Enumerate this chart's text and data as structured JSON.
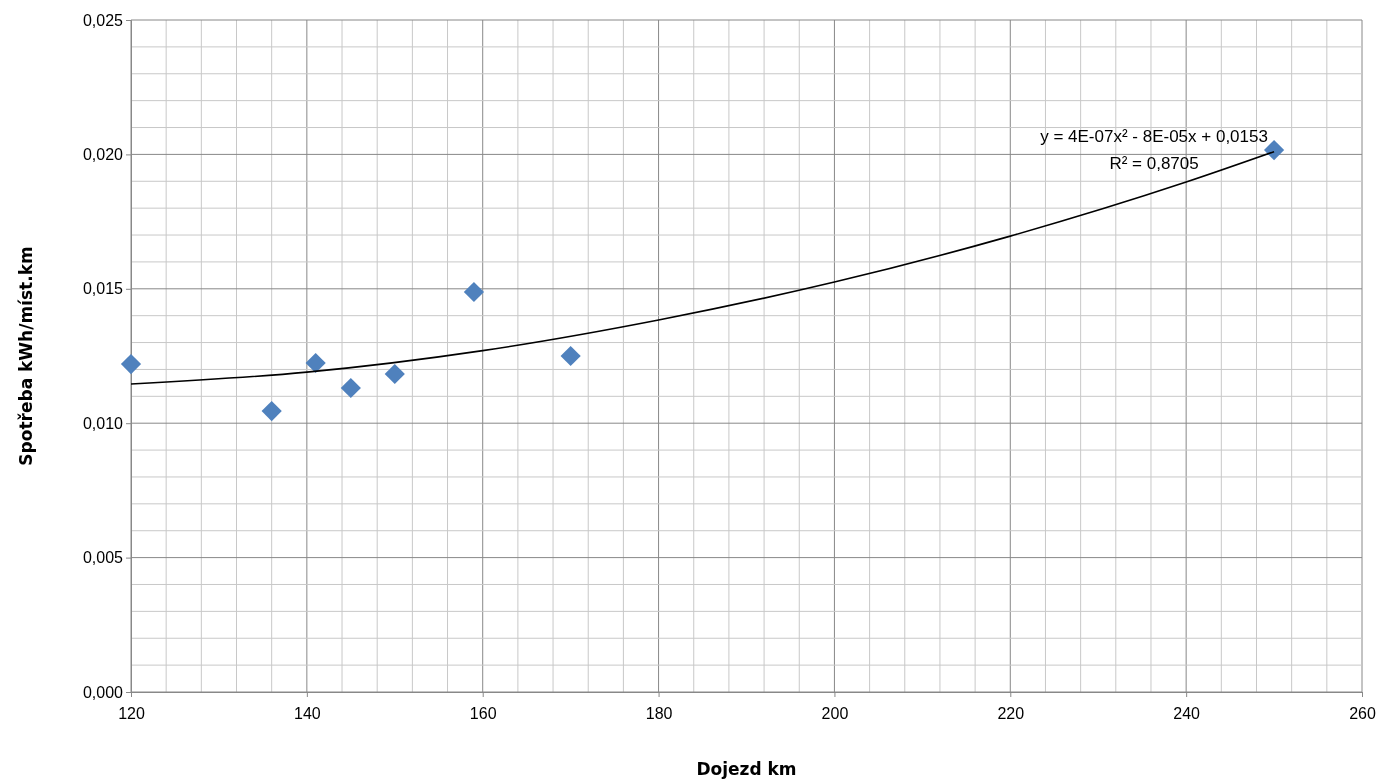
{
  "chart_data": {
    "type": "scatter",
    "xlabel": "Dojezd km",
    "ylabel": "Spotřeba kWh/míst.km",
    "xlim": [
      120,
      260
    ],
    "xticks": [
      120,
      140,
      160,
      180,
      200,
      220,
      240,
      260
    ],
    "ylim": [
      0,
      0.025
    ],
    "yticks": [
      {
        "value": 0,
        "label": "0,000"
      },
      {
        "value": 0.005,
        "label": "0,005"
      },
      {
        "value": 0.01,
        "label": "0,010"
      },
      {
        "value": 0.015,
        "label": "0,015"
      },
      {
        "value": 0.02,
        "label": "0,020"
      },
      {
        "value": 0.025,
        "label": "0,025"
      }
    ],
    "grid": true,
    "marker": "diamond",
    "series": [
      {
        "color": "#4f81bd",
        "x": [
          120,
          136,
          141,
          145,
          150,
          159,
          170,
          250
        ],
        "values": [
          0.0122,
          0.01045,
          0.01224,
          0.01131,
          0.01183,
          0.01488,
          0.0125,
          0.02016
        ]
      },
      {
        "type": "line",
        "color": "#000000",
        "marker": "none",
        "x": [
          120,
          140,
          160,
          180,
          200,
          220,
          240,
          250
        ],
        "values": [
          0.01146,
          0.0119,
          0.0127,
          0.01384,
          0.01525,
          0.01696,
          0.01897,
          0.0201
        ]
      }
    ],
    "annotations": [
      "y = 4E-07x² - 8E-05x + 0,0153",
      "R² = 0,8705"
    ]
  }
}
